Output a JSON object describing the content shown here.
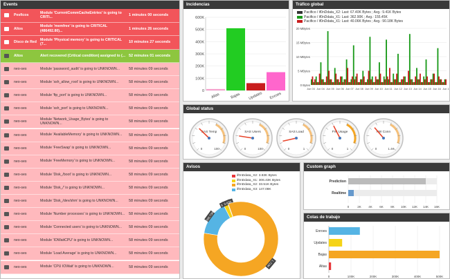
{
  "events": {
    "title": "Events",
    "rows": [
      {
        "color": "#f2555a",
        "icon": "alert-icon",
        "source": "Pesficos",
        "message": "Module 'CurrentCommCacheEntries' is going to CRITI...",
        "time": "1 minutes 00 seconds"
      },
      {
        "color": "#f2555a",
        "icon": "alert-icon",
        "source": "Altos",
        "message": "Module 'memfree' is going to CRITICAL (486492.80)...",
        "time": "1 minutes 26 seconds"
      },
      {
        "color": "#f2555a",
        "icon": "alert-icon",
        "source": "Disco de Red",
        "message": "Module 'Physical memory' is going to CRITICAL (7...",
        "time": "10 minutes 27 seconds"
      },
      {
        "color": "#8dc63f",
        "icon": "bell-icon",
        "source": "Altos",
        "message": "Alert recovered (Critical condition) assigned to (...",
        "time": "52 minutes 01 seconds"
      },
      {
        "color": "#ffb9bd",
        "icon": "alert-icon",
        "source": "neo-ses",
        "message": "Module 'password_audit' is going to UNKNOWN...",
        "time": "58 minutes 09 seconds"
      },
      {
        "color": "#ffb9bd",
        "icon": "alert-icon",
        "source": "neo-ses",
        "message": "Module 'ssh_allow_root' is going to UNKNOWN...",
        "time": "58 minutes 09 seconds"
      },
      {
        "color": "#ffb9bd",
        "icon": "alert-icon",
        "source": "neo-ses",
        "message": "Module 'ftp_port' is going to UNKNOWN...",
        "time": "58 minutes 09 seconds"
      },
      {
        "color": "#ffb9bd",
        "icon": "alert-icon",
        "source": "neo-ses",
        "message": "Module 'ssh_port' is going to UNKNOWN...",
        "time": "58 minutes 09 seconds"
      },
      {
        "color": "#ffb9bd",
        "icon": "alert-icon",
        "source": "neo-ses",
        "message": "Module 'Network_Usage_Bytes' is going to UNKNOWN...",
        "time": "58 minutes 09 seconds"
      },
      {
        "color": "#ffb9bd",
        "icon": "alert-icon",
        "source": "neo-ses",
        "message": "Module 'AvailableMemory' is going to UNKNOWN...",
        "time": "58 minutes 09 seconds"
      },
      {
        "color": "#ffb9bd",
        "icon": "alert-icon",
        "source": "neo-ses",
        "message": "Module 'FreeSwap' is going to UNKNOWN...",
        "time": "58 minutes 09 seconds"
      },
      {
        "color": "#ffb9bd",
        "icon": "alert-icon",
        "source": "neo-ses",
        "message": "Module 'FreeMemory' is going to UNKNOWN...",
        "time": "58 minutes 09 seconds"
      },
      {
        "color": "#ffb9bd",
        "icon": "alert-icon",
        "source": "neo-ses",
        "message": "Module 'Disk_/boot' is going to UNKNOWN...",
        "time": "58 minutes 09 seconds"
      },
      {
        "color": "#ffb9bd",
        "icon": "alert-icon",
        "source": "neo-ses",
        "message": "Module 'Disk_/' is going to UNKNOWN...",
        "time": "58 minutes 09 seconds"
      },
      {
        "color": "#ffb9bd",
        "icon": "alert-icon",
        "source": "neo-ses",
        "message": "Module 'Disk_/dev/shm' is going to UNKNOWN...",
        "time": "58 minutes 09 seconds"
      },
      {
        "color": "#ffb9bd",
        "icon": "alert-icon",
        "source": "neo-ses",
        "message": "Module 'Number processes' is going to UNKNOWN...",
        "time": "58 minutes 09 seconds"
      },
      {
        "color": "#ffb9bd",
        "icon": "alert-icon",
        "source": "neo-ses",
        "message": "Module 'Connected users' is going to UNKNOWN...",
        "time": "58 minutes 09 seconds"
      },
      {
        "color": "#ffb9bd",
        "icon": "alert-icon",
        "source": "neo-ses",
        "message": "Module 'IOWaitCPU' is going to UNKNOWN...",
        "time": "58 minutes 09 seconds"
      },
      {
        "color": "#ffb9bd",
        "icon": "alert-icon",
        "source": "neo-ses",
        "message": "Module 'Load Average' is going to UNKNOWN...",
        "time": "58 minutes 09 seconds"
      },
      {
        "color": "#ffb9bd",
        "icon": "alert-icon",
        "source": "neo-ses",
        "message": "Module 'CPU IOWait' is going to UNKNOWN...",
        "time": "58 minutes 09 seconds"
      }
    ]
  },
  "incidencias": {
    "title": "Incidencias"
  },
  "trafico": {
    "title": "Tráfico global",
    "legend": [
      {
        "color": "#333333",
        "label": "Pacifico / if0nDdata_X2: Last: 67.40K Bytes ; Avg.: 9.41K Bytes"
      },
      {
        "color": "#1a9a1a",
        "label": "Pacifico / if0nDdata_X1: Last: 362.90K ; Avg.: 155.45K"
      },
      {
        "color": "#c81d1d",
        "label": "Pacifico / if0nDdata_X1: Last: 40.06K Bytes ; Avg.: 90.18K Bytes"
      }
    ]
  },
  "global_status": {
    "title": "Global status",
    "gauges": [
      {
        "label": "SAS Temp",
        "value": 33,
        "min": "0",
        "max": "100"
      },
      {
        "label": "SAS Users",
        "value": 20,
        "min": "0",
        "max": "100"
      },
      {
        "label": "SAS Load",
        "value": 12,
        "min": "0",
        "max": "1"
      },
      {
        "label": "FW Usage",
        "value": 40,
        "min": "0",
        "max": "1"
      },
      {
        "label": "FW Conn",
        "value": 35,
        "min": "0",
        "max": "1.4K"
      }
    ]
  },
  "avisos": {
    "title": "Avisos",
    "legend": [
      {
        "color": "#e8363a",
        "label": "if0nDdata_X2: 3.83K Bytes"
      },
      {
        "color": "#f5d317",
        "label": "if0nDdata_X1: 306.43K Bytes"
      },
      {
        "color": "#f5a623",
        "label": "if0nDdata_X2: 33.51K Bytes"
      },
      {
        "color": "#55b4e4",
        "label": "if0nDdata_X3: 147.08K"
      }
    ],
    "slice_labels": [
      "308.73K",
      "38.21K",
      "3.83K",
      "1.71M"
    ]
  },
  "custom_graph": {
    "title": "Custom graph"
  },
  "colas": {
    "title": "Colas de trabajo"
  },
  "chart_data": [
    {
      "type": "bar",
      "title": "Incidencias",
      "categories": [
        "Altas",
        "Bajas",
        "Updates",
        "Enroes"
      ],
      "values": [
        12000,
        510000,
        60000,
        150000
      ],
      "colors": [
        "#f5a0cc",
        "#22cc22",
        "#c81d1d",
        "#ff66cc"
      ],
      "ylim": [
        0,
        600000
      ],
      "yticks": [
        "0",
        "100K",
        "200K",
        "300K",
        "400K",
        "500K",
        "600K"
      ]
    },
    {
      "type": "area",
      "title": "Tráfico global",
      "ylabel_ticks": [
        "0 Bytes",
        "5 MBytes",
        "10 MBytes",
        "15 MBytes",
        "20 MBytes"
      ],
      "xticks": [
        "Jun 03",
        "Jun 04",
        "Jun 05",
        "Jun 06",
        "Jun 07",
        "Jun 08",
        "Jun 09",
        "Jun 10",
        "Jun 11",
        "Jun 12",
        "Jun 13",
        "Jun 14",
        "Jun 15",
        "Jun 16",
        "Jun 17"
      ],
      "series": [
        {
          "name": "if0nDdata_X1",
          "color": "#1a9a1a",
          "values": [
            2,
            1,
            3,
            1,
            8,
            2,
            1,
            19,
            2,
            1,
            6,
            2,
            1,
            3,
            2,
            9,
            1,
            2,
            14,
            3,
            1,
            2,
            5,
            1,
            2,
            17,
            3,
            1,
            2,
            8,
            1,
            3,
            16,
            2,
            1,
            4,
            2,
            11,
            1,
            2,
            3,
            1,
            18,
            2,
            1,
            6,
            2,
            1,
            3,
            9,
            1,
            2,
            4,
            1,
            13,
            2,
            1,
            2
          ]
        },
        {
          "name": "if0nDdata_X1",
          "color": "#c81d1d",
          "values": [
            3,
            2,
            1,
            4,
            2,
            1,
            3,
            5,
            2,
            1,
            4,
            2,
            3,
            1,
            2,
            6,
            1,
            3,
            2,
            4,
            1,
            2,
            3,
            1,
            5,
            2,
            1,
            3,
            2,
            4,
            1,
            2,
            3,
            6,
            1,
            2,
            4,
            1,
            2,
            3,
            1,
            5,
            2,
            1,
            3,
            2,
            4,
            1,
            2,
            3,
            1,
            2,
            4,
            1,
            3,
            2,
            1,
            2
          ]
        }
      ]
    },
    {
      "type": "bar",
      "title": "Custom graph",
      "orientation": "horizontal",
      "categories": [
        "Prediction",
        "Realtime"
      ],
      "values": [
        14000,
        1000
      ],
      "xticks": [
        "0",
        "2K",
        "4K",
        "6K",
        "8K",
        "10K",
        "12K",
        "14K",
        "16K"
      ],
      "colors": [
        "#bbbbbb",
        "#6699cc"
      ]
    },
    {
      "type": "bar",
      "title": "Colas de trabajo",
      "orientation": "horizontal",
      "categories": [
        "Enroes",
        "Updates",
        "Bajas",
        "Altas"
      ],
      "values": [
        140000,
        60000,
        500000,
        10000
      ],
      "colors": [
        "#55b4e4",
        "#f5d317",
        "#f5a623",
        "#e8363a"
      ],
      "xticks": [
        "0",
        "100K",
        "200K",
        "300K",
        "400K",
        "500K"
      ]
    },
    {
      "type": "pie",
      "title": "Avisos",
      "values": [
        308730,
        38210,
        3830,
        1710000
      ],
      "colors": [
        "#55b4e4",
        "#f5d317",
        "#e8363a",
        "#f5a623"
      ]
    }
  ]
}
